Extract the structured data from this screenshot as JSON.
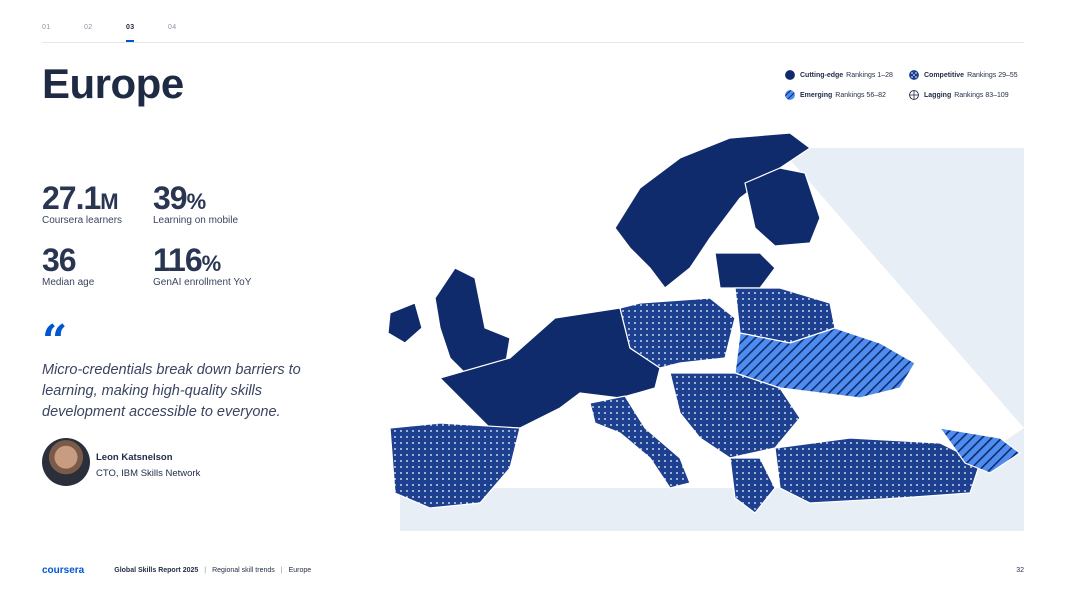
{
  "tabs": [
    "01",
    "02",
    "03",
    "04"
  ],
  "active_tab": "03",
  "title": "Europe",
  "legend": [
    {
      "bold": "Cutting-edge",
      "rest": "Rankings 1–28",
      "color": "#0f2b6b",
      "pattern": "solid"
    },
    {
      "bold": "Competitive",
      "rest": "Rankings 29–55",
      "color": "#1d3f8f",
      "pattern": "dots"
    },
    {
      "bold": "Emerging",
      "rest": "Rankings 56–82",
      "color": "#4f8cf0",
      "pattern": "stripes"
    },
    {
      "bold": "Lagging",
      "rest": "Rankings 83–109",
      "color": "#ffffff",
      "pattern": "grid"
    }
  ],
  "stats": [
    {
      "value": "27.1",
      "unit": "M",
      "label": "Coursera learners"
    },
    {
      "value": "39",
      "unit": "%",
      "label": "Learning on mobile"
    },
    {
      "value": "36",
      "unit": "",
      "label": "Median age"
    },
    {
      "value": "116",
      "unit": "%",
      "label": "GenAI enrollment YoY"
    }
  ],
  "quote_mark": "“",
  "quote": "Micro-credentials break down barriers to learning, making high-quality skills development accessible to everyone.",
  "person": {
    "name": "Leon Katsnelson",
    "title": "CTO, IBM Skills Network"
  },
  "footer": {
    "brand": "coursera",
    "report": "Global Skills Report 2025",
    "section": "Regional skill trends",
    "region": "Europe",
    "page": "32"
  },
  "colors": {
    "accent": "#0056d2",
    "cutting_edge": "#0f2b6b",
    "competitive": "#1d3f8f",
    "emerging": "#4f8cf0",
    "land_background": "#e8eef5"
  }
}
